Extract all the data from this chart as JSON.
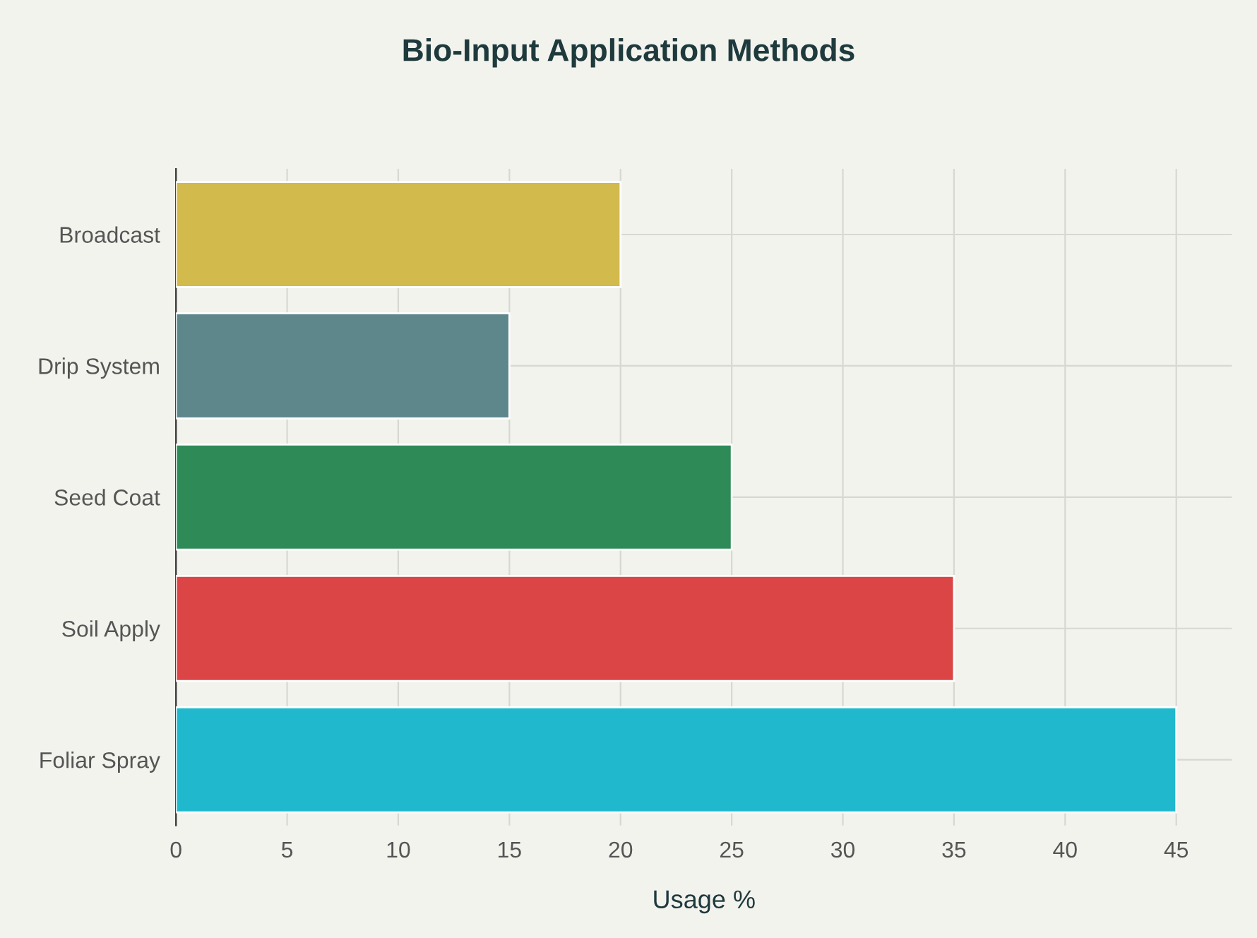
{
  "chart_data": {
    "type": "bar",
    "orientation": "horizontal",
    "title": "Bio-Input Application Methods",
    "xlabel": "Usage %",
    "categories": [
      "Broadcast",
      "Drip System",
      "Seed Coat",
      "Soil Apply",
      "Foliar Spray"
    ],
    "values": [
      20,
      15,
      25,
      35,
      45
    ],
    "colors": [
      "#d2ba4c",
      "#5e878c",
      "#2e8b57",
      "#db4545",
      "#1fb8cd"
    ],
    "xlim": [
      0,
      47.5
    ],
    "xticks": [
      0,
      5,
      10,
      15,
      20,
      25,
      30,
      35,
      40,
      45
    ],
    "grid": true,
    "legend": false
  }
}
